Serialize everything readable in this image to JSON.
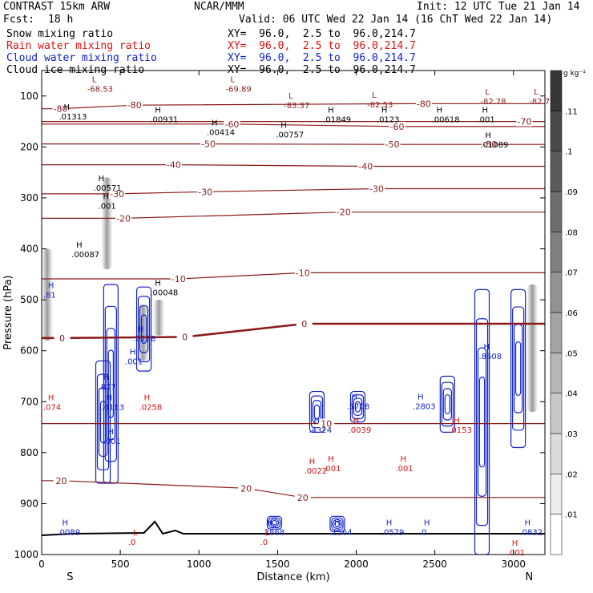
{
  "header": {
    "model": "CONTRAST 15km ARW",
    "org": "NCAR/MMM",
    "init": "Init: 12 UTC Tue 21 Jan 14",
    "fcst_label": "Fcst:",
    "fcst_value": "18 h",
    "valid": "Valid: 06 UTC Wed 22 Jan 14 (16 ChT Wed 22 Jan 14)"
  },
  "legend": [
    {
      "label": "Snow mixing ratio",
      "color": "#000000",
      "xy": "XY=  96.0,  2.5 to  96.0,214.7"
    },
    {
      "label": "Rain water mixing ratio",
      "color": "#dd1111",
      "xy": "XY=  96.0,  2.5 to  96.0,214.7"
    },
    {
      "label": "Cloud water mixing ratio",
      "color": "#1122cc",
      "xy": "XY=  96.0,  2.5 to  96.0,214.7"
    },
    {
      "label": "Cloud ice mixing ratio",
      "color": "#000000",
      "xy": "XY=  96.0,  2.5 to  96.0,214.7"
    }
  ],
  "chart_data": {
    "type": "contour",
    "xlabel": "Distance (km)",
    "ylabel": "Pressure (hPa)",
    "xlim": [
      0,
      3200
    ],
    "ylim": [
      1000,
      50
    ],
    "x_ticks": [
      0,
      500,
      1000,
      1500,
      2000,
      2500,
      3000
    ],
    "y_ticks": [
      100,
      200,
      300,
      400,
      500,
      600,
      700,
      800,
      900,
      1000
    ],
    "x_end_labels": {
      "left": "S",
      "right": "N"
    },
    "colorbar": {
      "unit": "g kg⁻¹",
      "levels": [
        0.01,
        0.02,
        0.03,
        0.04,
        0.05,
        0.06,
        0.07,
        0.08,
        0.09,
        0.1,
        0.11
      ],
      "tick_labels": [
        ".01",
        ".02",
        ".03",
        ".04",
        ".05",
        ".06",
        ".07",
        ".08",
        ".09",
        ".1",
        ".11"
      ]
    },
    "temperature_isotherms_C": [
      {
        "value": -80,
        "labels": [
          {
            "x": 120,
            "p": 125
          },
          {
            "x": 590,
            "p": 118
          },
          {
            "x": 2430,
            "p": 115
          }
        ]
      },
      {
        "value": -70,
        "labels": [
          {
            "x": 3070,
            "p": 150
          }
        ]
      },
      {
        "value": -60,
        "labels": [
          {
            "x": 1210,
            "p": 155
          },
          {
            "x": 2260,
            "p": 160
          }
        ]
      },
      {
        "value": -50,
        "labels": [
          {
            "x": 1060,
            "p": 194
          },
          {
            "x": 2230,
            "p": 195
          },
          {
            "x": 2850,
            "p": 195
          }
        ]
      },
      {
        "value": -40,
        "labels": [
          {
            "x": 840,
            "p": 235
          },
          {
            "x": 2060,
            "p": 238
          }
        ]
      },
      {
        "value": -30,
        "labels": [
          {
            "x": 480,
            "p": 292
          },
          {
            "x": 1040,
            "p": 288
          },
          {
            "x": 2130,
            "p": 282
          }
        ]
      },
      {
        "value": -20,
        "labels": [
          {
            "x": 520,
            "p": 340
          },
          {
            "x": 1920,
            "p": 328
          }
        ]
      },
      {
        "value": -10,
        "labels": [
          {
            "x": 870,
            "p": 459
          },
          {
            "x": 1660,
            "p": 447
          }
        ]
      },
      {
        "value": 0,
        "labels": [
          {
            "x": 130,
            "p": 575
          },
          {
            "x": 910,
            "p": 573
          },
          {
            "x": 1670,
            "p": 547
          }
        ]
      },
      {
        "value": 10,
        "labels": [
          {
            "x": 1810,
            "p": 743
          }
        ]
      },
      {
        "value": 20,
        "labels": [
          {
            "x": 125,
            "p": 855
          },
          {
            "x": 1300,
            "p": 870
          },
          {
            "x": 1660,
            "p": 888
          }
        ]
      }
    ],
    "extrema_labels": [
      {
        "kind": "L",
        "value": "-68.53",
        "x": 320,
        "p": 85,
        "color": "#8b1a1a"
      },
      {
        "kind": "L",
        "value": "-69.89",
        "x": 1200,
        "p": 85,
        "color": "#8b1a1a"
      },
      {
        "kind": "L",
        "value": "-83.37",
        "x": 1570,
        "p": 118,
        "color": "#8b1a1a"
      },
      {
        "kind": "L",
        "value": "-82.53",
        "x": 2100,
        "p": 116,
        "color": "#8b1a1a"
      },
      {
        "kind": "L",
        "value": "-82.78",
        "x": 2820,
        "p": 110,
        "color": "#8b1a1a"
      },
      {
        "kind": "L",
        "value": "-82.72",
        "x": 3130,
        "p": 110,
        "color": "#8b1a1a"
      },
      {
        "kind": "H",
        "value": ".01313",
        "x": 140,
        "p": 140,
        "color": "#000000"
      },
      {
        "kind": "H",
        "value": ".00931",
        "x": 720,
        "p": 145,
        "color": "#000000"
      },
      {
        "kind": "H",
        "value": ".00414",
        "x": 1080,
        "p": 170,
        "color": "#000000"
      },
      {
        "kind": "H",
        "value": ".00757",
        "x": 1520,
        "p": 175,
        "color": "#000000"
      },
      {
        "kind": "H",
        "value": ".01849",
        "x": 1820,
        "p": 145,
        "color": "#000000"
      },
      {
        "kind": "H",
        "value": ".0123",
        "x": 2160,
        "p": 145,
        "color": "#000000"
      },
      {
        "kind": "H",
        "value": ".00618",
        "x": 2510,
        "p": 145,
        "color": "#000000"
      },
      {
        "kind": "H",
        "value": ".001",
        "x": 2800,
        "p": 145,
        "color": "#000000"
      },
      {
        "kind": "H",
        "value": ".01089",
        "x": 2820,
        "p": 195,
        "color": "#000000"
      },
      {
        "kind": "H",
        "value": ".00571",
        "x": 360,
        "p": 280,
        "color": "#000000"
      },
      {
        "kind": "H",
        "value": ".001",
        "x": 390,
        "p": 315,
        "color": "#000000"
      },
      {
        "kind": "H",
        "value": ".00087",
        "x": 220,
        "p": 410,
        "color": "#000000"
      },
      {
        "kind": "H",
        "value": ".81",
        "x": 40,
        "p": 490,
        "color": "#1122cc"
      },
      {
        "kind": "H",
        "value": ".00048",
        "x": 720,
        "p": 485,
        "color": "#000000"
      },
      {
        "kind": "H",
        "value": ".2128",
        "x": 610,
        "p": 575,
        "color": "#1122cc"
      },
      {
        "kind": "H",
        "value": ".001",
        "x": 560,
        "p": 620,
        "color": "#1122cc"
      },
      {
        "kind": "H",
        "value": ".807",
        "x": 390,
        "p": 670,
        "color": "#1122cc"
      },
      {
        "kind": "H",
        "value": ".0163",
        "x": 410,
        "p": 710,
        "color": "#1122cc"
      },
      {
        "kind": "H",
        "value": ".0258",
        "x": 650,
        "p": 710,
        "color": "#dd1111"
      },
      {
        "kind": "H",
        "value": ".001",
        "x": 420,
        "p": 777,
        "color": "#1122cc"
      },
      {
        "kind": "H",
        "value": ".074",
        "x": 40,
        "p": 710,
        "color": "#dd1111"
      },
      {
        "kind": "H",
        "value": ".5708",
        "x": 1970,
        "p": 708,
        "color": "#1122cc"
      },
      {
        "kind": "H",
        "value": ".4324",
        "x": 1730,
        "p": 755,
        "color": "#1122cc"
      },
      {
        "kind": "H",
        "value": ".0039",
        "x": 1980,
        "p": 755,
        "color": "#dd1111"
      },
      {
        "kind": "H",
        "value": ".2803",
        "x": 2390,
        "p": 708,
        "color": "#1122cc"
      },
      {
        "kind": "H",
        "value": ".8608",
        "x": 2810,
        "p": 610,
        "color": "#1122cc"
      },
      {
        "kind": "H",
        "value": ".0153",
        "x": 2620,
        "p": 755,
        "color": "#dd1111"
      },
      {
        "kind": "H",
        "value": ".0022",
        "x": 1700,
        "p": 835,
        "color": "#dd1111"
      },
      {
        "kind": "H",
        "value": ".001",
        "x": 1820,
        "p": 830,
        "color": "#dd1111"
      },
      {
        "kind": "H",
        "value": ".0089",
        "x": 130,
        "p": 955,
        "color": "#1122cc"
      },
      {
        "kind": "H",
        "value": ".2868",
        "x": 1430,
        "p": 955,
        "color": "#1122cc"
      },
      {
        "kind": "H",
        "value": ".1564",
        "x": 1860,
        "p": 955,
        "color": "#1122cc"
      },
      {
        "kind": "H",
        "value": ".0579",
        "x": 2190,
        "p": 955,
        "color": "#1122cc"
      },
      {
        "kind": "H",
        "value": ".0",
        "x": 2430,
        "p": 955,
        "color": "#1122cc"
      },
      {
        "kind": "H",
        "value": ".0832",
        "x": 3070,
        "p": 955,
        "color": "#1122cc"
      },
      {
        "kind": "L",
        "value": ".0",
        "x": 580,
        "p": 975,
        "color": "#dd1111"
      },
      {
        "kind": "L",
        "value": ".0",
        "x": 1420,
        "p": 975,
        "color": "#dd1111"
      },
      {
        "kind": "H",
        "value": ".001",
        "x": 2280,
        "p": 830,
        "color": "#dd1111"
      },
      {
        "kind": "H",
        "value": ".001",
        "x": 2990,
        "p": 995,
        "color": "#dd1111"
      }
    ],
    "fields": {
      "cloud_ice_shading": [
        {
          "x": 35,
          "p_top": 400,
          "p_bot": 580
        },
        {
          "x": 415,
          "p_top": 260,
          "p_bot": 440
        },
        {
          "x": 645,
          "p_top": 510,
          "p_bot": 620
        },
        {
          "x": 745,
          "p_top": 500,
          "p_bot": 570
        },
        {
          "x": 3120,
          "p_top": 470,
          "p_bot": 720
        }
      ],
      "cloud_water_cells": [
        {
          "x": 440,
          "p_top": 470,
          "p_bot": 860
        },
        {
          "x": 650,
          "p_top": 475,
          "p_bot": 640
        },
        {
          "x": 390,
          "p_top": 620,
          "p_bot": 860
        },
        {
          "x": 1750,
          "p_top": 680,
          "p_bot": 760
        },
        {
          "x": 2010,
          "p_top": 680,
          "p_bot": 740
        },
        {
          "x": 2580,
          "p_top": 650,
          "p_bot": 760
        },
        {
          "x": 2800,
          "p_top": 480,
          "p_bot": 1000
        },
        {
          "x": 3030,
          "p_top": 480,
          "p_bot": 790
        },
        {
          "x": 1480,
          "p_top": 925,
          "p_bot": 950
        },
        {
          "x": 1880,
          "p_top": 925,
          "p_bot": 955
        }
      ]
    }
  }
}
